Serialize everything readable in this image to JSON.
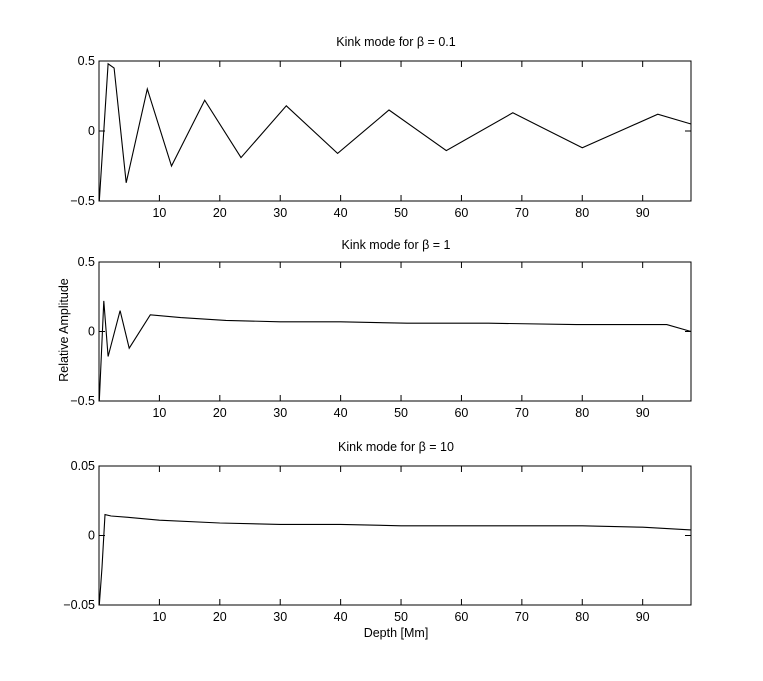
{
  "figure": {
    "ylabel": "Relative Amplitude",
    "xlabel": "Depth [Mm]"
  },
  "chart_data": [
    {
      "type": "line",
      "title": "Kink mode for β = 0.1",
      "xlabel": "",
      "ylabel": "",
      "xlim": [
        0,
        98
      ],
      "ylim": [
        -0.5,
        0.5
      ],
      "xticks": [
        10,
        20,
        30,
        40,
        50,
        60,
        70,
        80,
        90
      ],
      "xtick_labels": [
        "10",
        "20",
        "30",
        "40",
        "50",
        "60",
        "70",
        "80",
        "90"
      ],
      "yticks": [
        -0.5,
        0,
        0.5
      ],
      "ytick_labels": [
        "−0.5",
        "0",
        "0.5"
      ],
      "grid": false,
      "series": [
        {
          "x": [
            0.05,
            1.5,
            2.5,
            4.5,
            8.0,
            12.0,
            17.5,
            23.5,
            31.0,
            39.5,
            48.0,
            57.5,
            68.5,
            80.0,
            92.5,
            98.0
          ],
          "values": [
            -0.5,
            0.48,
            0.45,
            -0.37,
            0.3,
            -0.25,
            0.22,
            -0.19,
            0.18,
            -0.16,
            0.15,
            -0.14,
            0.13,
            -0.12,
            0.12,
            0.05
          ]
        }
      ]
    },
    {
      "type": "line",
      "title": "Kink mode for β = 1",
      "xlabel": "",
      "ylabel": "",
      "xlim": [
        0,
        98
      ],
      "ylim": [
        -0.5,
        0.5
      ],
      "xticks": [
        10,
        20,
        30,
        40,
        50,
        60,
        70,
        80,
        90
      ],
      "xtick_labels": [
        "10",
        "20",
        "30",
        "40",
        "50",
        "60",
        "70",
        "80",
        "90"
      ],
      "yticks": [
        -0.5,
        0,
        0.5
      ],
      "ytick_labels": [
        "−0.5",
        "0",
        "0.5"
      ],
      "grid": false,
      "series": [
        {
          "x": [
            0.05,
            0.8,
            1.5,
            3.5,
            5.0,
            8.5,
            13.5,
            21.0,
            30.0,
            40.0,
            51.0,
            64.5,
            79.0,
            94.0,
            98.0
          ],
          "values": [
            -0.5,
            0.22,
            -0.18,
            0.15,
            -0.12,
            0.12,
            0.1,
            0.08,
            0.07,
            0.07,
            0.06,
            0.06,
            0.05,
            0.05,
            0.0
          ]
        }
      ]
    },
    {
      "type": "line",
      "title": "Kink mode for β = 10",
      "xlabel": "",
      "ylabel": "",
      "xlim": [
        0,
        98
      ],
      "ylim": [
        -0.05,
        0.05
      ],
      "xticks": [
        10,
        20,
        30,
        40,
        50,
        60,
        70,
        80,
        90
      ],
      "xtick_labels": [
        "10",
        "20",
        "30",
        "40",
        "50",
        "60",
        "70",
        "80",
        "90"
      ],
      "yticks": [
        -0.05,
        0,
        0.05
      ],
      "ytick_labels": [
        "−0.05",
        "0",
        "0.05"
      ],
      "grid": false,
      "series": [
        {
          "x": [
            0.05,
            0.5,
            1.0,
            2.0,
            5.0,
            10.0,
            20.0,
            30.0,
            40.0,
            50.0,
            60.0,
            70.0,
            80.0,
            90.0,
            98.0
          ],
          "values": [
            -0.05,
            -0.023,
            0.015,
            0.014,
            0.013,
            0.011,
            0.009,
            0.008,
            0.008,
            0.007,
            0.007,
            0.007,
            0.007,
            0.006,
            0.004
          ]
        }
      ]
    }
  ]
}
